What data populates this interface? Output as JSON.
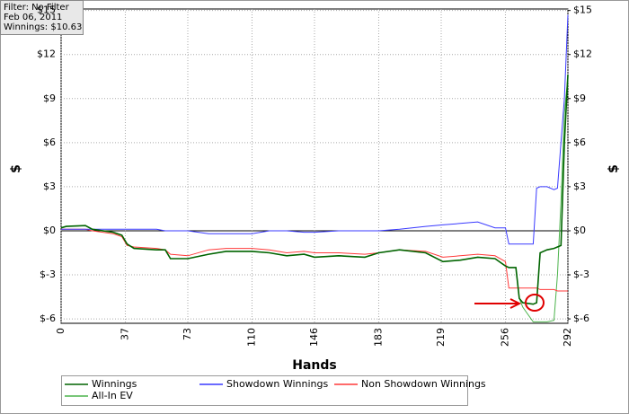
{
  "chart_data": {
    "type": "line",
    "info_box": [
      "Filter: No Filter",
      "Feb 06, 2011",
      "Winnings: $10.63"
    ],
    "xlabel": "Hands",
    "ylabel": "$",
    "y2label": "$",
    "x": [
      0,
      3,
      14,
      18,
      30,
      35,
      38,
      42,
      55,
      60,
      63,
      73,
      85,
      95,
      110,
      120,
      130,
      140,
      146,
      160,
      175,
      183,
      195,
      210,
      220,
      230,
      240,
      250,
      256,
      258,
      262,
      264,
      266,
      272,
      274,
      276,
      280,
      284,
      286,
      288,
      290,
      292
    ],
    "xlim": [
      0,
      292
    ],
    "xticks": [
      0,
      37,
      73,
      110,
      146,
      183,
      219,
      256,
      292
    ],
    "ylim": [
      -6.3,
      15.1
    ],
    "yticks": [
      {
        "value": -6,
        "label": "$-6"
      },
      {
        "value": -3,
        "label": "$-3"
      },
      {
        "value": 0,
        "label": "$0"
      },
      {
        "value": 3,
        "label": "$3"
      },
      {
        "value": 6,
        "label": "$6"
      },
      {
        "value": 9,
        "label": "$9"
      },
      {
        "value": 12,
        "label": "$12"
      },
      {
        "value": 15,
        "label": "$15"
      }
    ],
    "y2lim": [
      -6.3,
      15.1
    ],
    "y2ticks": [
      {
        "value": -6,
        "label": "$-6"
      },
      {
        "value": -3,
        "label": "$-3"
      },
      {
        "value": 0,
        "label": "$0"
      },
      {
        "value": 3,
        "label": "$3"
      },
      {
        "value": 6,
        "label": "$6"
      },
      {
        "value": 9,
        "label": "$9"
      },
      {
        "value": 12,
        "label": "$12"
      },
      {
        "value": 15,
        "label": "$15"
      }
    ],
    "grid": true,
    "legend": "bottom",
    "series": [
      {
        "name": "Winnings",
        "color": "#006400",
        "values": [
          0.2,
          0.3,
          0.35,
          0.1,
          -0.1,
          -0.3,
          -0.9,
          -1.2,
          -1.3,
          -1.3,
          -1.9,
          -1.9,
          -1.6,
          -1.4,
          -1.4,
          -1.5,
          -1.7,
          -1.6,
          -1.8,
          -1.7,
          -1.8,
          -1.5,
          -1.3,
          -1.5,
          -2.1,
          -2.0,
          -1.8,
          -1.9,
          -2.4,
          -2.5,
          -2.5,
          -4.6,
          -4.9,
          -5.0,
          -4.9,
          -1.5,
          -1.3,
          -1.2,
          -1.1,
          -1.0,
          6.0,
          10.63
        ]
      },
      {
        "name": "Showdown Winnings",
        "color": "#3a3aff",
        "values": [
          0.1,
          0.1,
          0.1,
          0.1,
          0.1,
          0.1,
          0.1,
          0.1,
          0.1,
          0,
          0,
          0,
          -0.2,
          -0.2,
          -0.2,
          0,
          0,
          -0.1,
          -0.1,
          0,
          0,
          0,
          0.1,
          0.3,
          0.4,
          0.5,
          0.6,
          0.2,
          0.2,
          -0.9,
          -0.9,
          -0.9,
          -0.9,
          -0.9,
          2.9,
          3.0,
          3.0,
          2.8,
          2.9,
          6.0,
          9.0,
          14.7
        ]
      },
      {
        "name": "Non Showdown Winnings",
        "color": "#ff3a3a",
        "values": [
          0.1,
          0.1,
          0.1,
          0,
          -0.2,
          -0.4,
          -1.0,
          -1.1,
          -1.2,
          -1.3,
          -1.6,
          -1.7,
          -1.3,
          -1.2,
          -1.2,
          -1.3,
          -1.5,
          -1.4,
          -1.5,
          -1.5,
          -1.6,
          -1.5,
          -1.3,
          -1.4,
          -1.8,
          -1.7,
          -1.6,
          -1.7,
          -2.1,
          -3.9,
          -3.9,
          -3.9,
          -3.9,
          -3.9,
          -3.9,
          -4.0,
          -4.0,
          -4.0,
          -4.1,
          -4.1,
          -4.1,
          -4.1
        ]
      },
      {
        "name": "All-In EV",
        "color": "#4cb34c",
        "values": [
          0.2,
          0.3,
          0.35,
          0.1,
          -0.1,
          -0.3,
          -0.9,
          -1.2,
          -1.3,
          -1.3,
          -1.9,
          -1.9,
          -1.6,
          -1.4,
          -1.4,
          -1.5,
          -1.7,
          -1.6,
          -1.8,
          -1.7,
          -1.8,
          -1.5,
          -1.3,
          -1.5,
          -2.1,
          -2.0,
          -1.8,
          -1.9,
          -2.4,
          -2.5,
          -2.5,
          -4.6,
          -5.2,
          -6.2,
          -6.2,
          -6.2,
          -6.2,
          -6.1,
          -3.0,
          2.0,
          8.0,
          10.5
        ]
      }
    ]
  }
}
